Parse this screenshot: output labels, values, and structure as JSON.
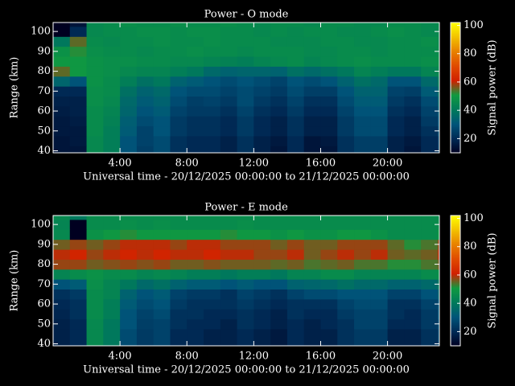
{
  "chart_data": [
    {
      "type": "heatmap",
      "title": "Power - O mode",
      "xlabel": "Universal time - 20/12/2025 00:00:00 to 21/12/2025 00:00:00",
      "ylabel": "Range (km)",
      "x": [
        0,
        1,
        2,
        3,
        4,
        5,
        6,
        7,
        8,
        9,
        10,
        11,
        12,
        13,
        14,
        15,
        16,
        17,
        18,
        19,
        20,
        21,
        22,
        23
      ],
      "y": [
        40,
        45,
        50,
        55,
        60,
        65,
        70,
        75,
        80,
        85,
        90,
        95,
        100,
        105
      ],
      "xlim": [
        0,
        23.1
      ],
      "ylim": [
        39,
        104.5
      ],
      "xticks": [
        {
          "value": 4,
          "label": "4:00"
        },
        {
          "value": 8,
          "label": "8:00"
        },
        {
          "value": 12,
          "label": "12:00"
        },
        {
          "value": 16,
          "label": "16:00"
        },
        {
          "value": 20,
          "label": "20:00"
        }
      ],
      "yticks": [
        40,
        50,
        60,
        70,
        80,
        90,
        100
      ],
      "values": [
        [
          15,
          15,
          45,
          42,
          30,
          25,
          28,
          22,
          20,
          20,
          18,
          22,
          18,
          15,
          20,
          15,
          15,
          22,
          25,
          25,
          18,
          15,
          20,
          25
        ],
        [
          15,
          16,
          45,
          42,
          30,
          26,
          28,
          22,
          20,
          20,
          18,
          22,
          18,
          16,
          20,
          15,
          16,
          22,
          25,
          25,
          18,
          16,
          20,
          25
        ],
        [
          16,
          16,
          46,
          42,
          32,
          26,
          30,
          24,
          22,
          22,
          20,
          24,
          20,
          18,
          22,
          18,
          18,
          24,
          28,
          28,
          20,
          18,
          22,
          28
        ],
        [
          16,
          17,
          46,
          43,
          33,
          28,
          30,
          24,
          22,
          22,
          20,
          24,
          20,
          18,
          22,
          18,
          18,
          24,
          28,
          28,
          20,
          18,
          24,
          30
        ],
        [
          17,
          18,
          46,
          44,
          35,
          30,
          32,
          26,
          24,
          24,
          22,
          26,
          22,
          20,
          24,
          20,
          20,
          26,
          30,
          30,
          22,
          20,
          26,
          32
        ],
        [
          18,
          18,
          47,
          45,
          36,
          32,
          34,
          28,
          25,
          26,
          24,
          28,
          24,
          22,
          26,
          22,
          22,
          28,
          32,
          32,
          24,
          22,
          28,
          35
        ],
        [
          20,
          20,
          47,
          46,
          38,
          34,
          36,
          30,
          28,
          28,
          26,
          28,
          26,
          24,
          28,
          25,
          25,
          30,
          34,
          34,
          26,
          25,
          32,
          38
        ],
        [
          35,
          30,
          48,
          46,
          42,
          38,
          40,
          34,
          32,
          30,
          28,
          30,
          28,
          26,
          30,
          28,
          30,
          34,
          38,
          36,
          30,
          30,
          36,
          42
        ],
        [
          55,
          50,
          48,
          47,
          45,
          44,
          44,
          42,
          40,
          36,
          34,
          35,
          35,
          34,
          38,
          36,
          38,
          40,
          44,
          42,
          40,
          40,
          44,
          46
        ],
        [
          50,
          50,
          48,
          47,
          47,
          46,
          46,
          45,
          45,
          44,
          43,
          42,
          44,
          45,
          46,
          44,
          45,
          46,
          47,
          46,
          46,
          46,
          47,
          48
        ],
        [
          48,
          52,
          47,
          46,
          46,
          45,
          46,
          46,
          47,
          46,
          46,
          45,
          46,
          46,
          46,
          45,
          45,
          46,
          46,
          45,
          46,
          46,
          46,
          47
        ],
        [
          40,
          55,
          46,
          45,
          46,
          46,
          47,
          46,
          46,
          47,
          46,
          46,
          46,
          45,
          45,
          45,
          46,
          46,
          45,
          45,
          46,
          46,
          47,
          46
        ],
        [
          10,
          20,
          45,
          46,
          46,
          47,
          47,
          46,
          47,
          47,
          46,
          46,
          45,
          46,
          45,
          46,
          46,
          45,
          45,
          46,
          47,
          46,
          45,
          46
        ],
        [
          10,
          15,
          45,
          46,
          47,
          46,
          46,
          47,
          46,
          46,
          47,
          46,
          45,
          46,
          46,
          45,
          46,
          46,
          45,
          45,
          46,
          46,
          45,
          46
        ]
      ],
      "colorbar": {
        "label": "Signal power (dB)",
        "lim": [
          10,
          102
        ],
        "ticks": [
          20,
          40,
          60,
          80,
          100
        ],
        "colors": [
          "#000020",
          "#002a55",
          "#00557a",
          "#007a5a",
          "#109a40",
          "#d02000",
          "#e04a00",
          "#e88000",
          "#f2c000",
          "#ffff00"
        ]
      }
    },
    {
      "type": "heatmap",
      "title": "Power - E mode",
      "xlabel": "Universal time - 20/12/2025 00:00:00 to 21/12/2025 00:00:00",
      "ylabel": "Range (km)",
      "x": [
        0,
        1,
        2,
        3,
        4,
        5,
        6,
        7,
        8,
        9,
        10,
        11,
        12,
        13,
        14,
        15,
        16,
        17,
        18,
        19,
        20,
        21,
        22,
        23
      ],
      "y": [
        40,
        45,
        50,
        55,
        60,
        65,
        70,
        75,
        80,
        85,
        90,
        95,
        100,
        105
      ],
      "xlim": [
        0,
        23.1
      ],
      "ylim": [
        39,
        104.5
      ],
      "xticks": [
        {
          "value": 4,
          "label": "4:00"
        },
        {
          "value": 8,
          "label": "8:00"
        },
        {
          "value": 12,
          "label": "12:00"
        },
        {
          "value": 16,
          "label": "16:00"
        },
        {
          "value": 20,
          "label": "20:00"
        }
      ],
      "yticks": [
        40,
        50,
        60,
        70,
        80,
        90,
        100
      ],
      "values": [
        [
          18,
          20,
          45,
          40,
          28,
          24,
          26,
          20,
          20,
          18,
          18,
          20,
          18,
          16,
          20,
          18,
          18,
          22,
          24,
          24,
          18,
          18,
          22,
          26
        ],
        [
          18,
          20,
          45,
          40,
          28,
          24,
          26,
          20,
          20,
          18,
          18,
          20,
          18,
          16,
          20,
          18,
          18,
          22,
          24,
          24,
          18,
          18,
          22,
          26
        ],
        [
          18,
          20,
          45,
          40,
          30,
          25,
          26,
          22,
          20,
          20,
          18,
          22,
          20,
          18,
          20,
          18,
          20,
          22,
          26,
          26,
          20,
          20,
          24,
          28
        ],
        [
          19,
          22,
          46,
          42,
          30,
          26,
          28,
          22,
          22,
          20,
          20,
          22,
          20,
          18,
          22,
          20,
          20,
          24,
          26,
          26,
          22,
          20,
          24,
          30
        ],
        [
          20,
          22,
          46,
          42,
          32,
          28,
          30,
          24,
          22,
          22,
          22,
          24,
          22,
          20,
          22,
          22,
          22,
          26,
          28,
          28,
          22,
          22,
          26,
          30
        ],
        [
          22,
          24,
          46,
          44,
          34,
          30,
          32,
          26,
          24,
          24,
          22,
          26,
          24,
          22,
          26,
          28,
          28,
          30,
          30,
          30,
          26,
          26,
          30,
          34
        ],
        [
          30,
          32,
          47,
          44,
          40,
          36,
          38,
          34,
          32,
          32,
          30,
          32,
          30,
          30,
          34,
          35,
          36,
          38,
          36,
          36,
          34,
          34,
          36,
          40
        ],
        [
          44,
          46,
          48,
          46,
          46,
          44,
          45,
          44,
          42,
          42,
          40,
          42,
          42,
          40,
          44,
          44,
          46,
          46,
          44,
          44,
          44,
          44,
          46,
          48
        ],
        [
          58,
          58,
          56,
          57,
          58,
          57,
          58,
          56,
          56,
          57,
          56,
          56,
          56,
          55,
          56,
          54,
          55,
          56,
          54,
          54,
          52,
          52,
          54,
          56
        ],
        [
          60,
          62,
          58,
          60,
          62,
          60,
          62,
          60,
          60,
          62,
          60,
          60,
          58,
          58,
          60,
          56,
          58,
          60,
          58,
          60,
          56,
          55,
          56,
          60
        ],
        [
          56,
          58,
          56,
          58,
          60,
          60,
          60,
          58,
          60,
          60,
          58,
          58,
          58,
          56,
          58,
          56,
          56,
          58,
          58,
          58,
          55,
          52,
          54,
          58
        ],
        [
          45,
          10,
          48,
          50,
          52,
          50,
          50,
          50,
          50,
          50,
          52,
          50,
          50,
          48,
          50,
          48,
          48,
          50,
          50,
          48,
          46,
          46,
          46,
          50
        ],
        [
          44,
          10,
          46,
          46,
          47,
          46,
          47,
          46,
          46,
          46,
          46,
          47,
          46,
          46,
          46,
          46,
          46,
          46,
          46,
          46,
          46,
          46,
          46,
          47
        ],
        [
          45,
          40,
          46,
          46,
          46,
          46,
          46,
          46,
          46,
          46,
          46,
          46,
          46,
          46,
          46,
          46,
          46,
          46,
          46,
          46,
          46,
          46,
          46,
          46
        ]
      ],
      "colorbar": {
        "label": "Signal power (dB)",
        "lim": [
          10,
          102
        ],
        "ticks": [
          20,
          40,
          60,
          80,
          100
        ],
        "colors": [
          "#000020",
          "#002a55",
          "#00557a",
          "#007a5a",
          "#109a40",
          "#d02000",
          "#e04a00",
          "#e88000",
          "#f2c000",
          "#ffff00"
        ]
      }
    }
  ]
}
